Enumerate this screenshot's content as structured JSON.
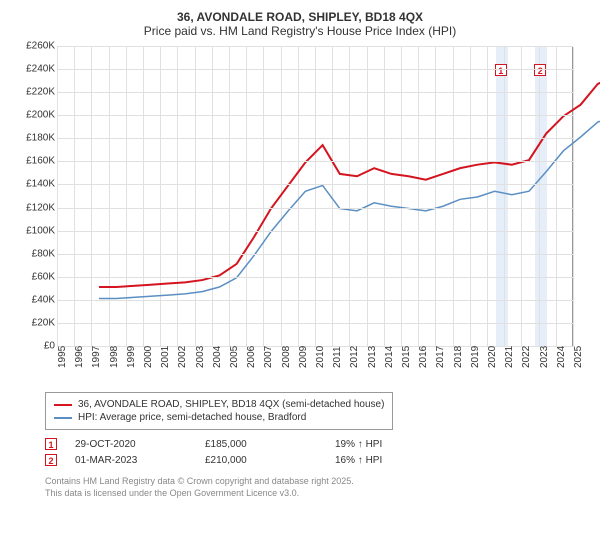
{
  "title": "36, AVONDALE ROAD, SHIPLEY, BD18 4QX",
  "subtitle": "Price paid vs. HM Land Registry's House Price Index (HPI)",
  "chart": {
    "type": "line",
    "background_color": "#ffffff",
    "grid_color": "#e0e0e0",
    "ylim": [
      0,
      260000
    ],
    "ytick_step": 20000,
    "y_ticks": [
      "£0",
      "£20K",
      "£40K",
      "£60K",
      "£80K",
      "£100K",
      "£120K",
      "£140K",
      "£160K",
      "£180K",
      "£200K",
      "£220K",
      "£240K",
      "£260K"
    ],
    "x_years": [
      1995,
      1996,
      1997,
      1998,
      1999,
      2000,
      2001,
      2002,
      2003,
      2004,
      2005,
      2006,
      2007,
      2008,
      2009,
      2010,
      2011,
      2012,
      2013,
      2014,
      2015,
      2016,
      2017,
      2018,
      2019,
      2020,
      2021,
      2022,
      2023,
      2024,
      2025
    ],
    "series": [
      {
        "name": "36, AVONDALE ROAD, SHIPLEY, BD18 4QX (semi-detached house)",
        "color": "#d4141e",
        "line_width": 2,
        "values": [
          52000,
          52000,
          53000,
          54000,
          55000,
          56000,
          58000,
          62000,
          72000,
          95000,
          120000,
          140000,
          160000,
          175000,
          150000,
          148000,
          155000,
          150000,
          148000,
          145000,
          150000,
          155000,
          158000,
          160000,
          158000,
          162000,
          185000,
          200000,
          210000,
          228000,
          235000
        ]
      },
      {
        "name": "HPI: Average price, semi-detached house, Bradford",
        "color": "#5b8fc4",
        "line_width": 1.5,
        "values": [
          42000,
          42000,
          43000,
          44000,
          45000,
          46000,
          48000,
          52000,
          60000,
          79000,
          100000,
          118000,
          135000,
          140000,
          120000,
          118000,
          125000,
          122000,
          120000,
          118000,
          122000,
          128000,
          130000,
          135000,
          132000,
          135000,
          152000,
          170000,
          182000,
          195000,
          200000
        ]
      }
    ],
    "highlight_bands": [
      {
        "start_year": 2020.5,
        "end_year": 2021.2,
        "color": "#d6e4f5"
      },
      {
        "start_year": 2022.8,
        "end_year": 2023.5,
        "color": "#d6e4f5"
      }
    ],
    "markers": [
      {
        "label": "1",
        "year": 2020.8,
        "y": 240000,
        "color": "#d4141e"
      },
      {
        "label": "2",
        "year": 2023.1,
        "y": 240000,
        "color": "#d4141e"
      }
    ]
  },
  "legend": {
    "items": [
      {
        "color": "#d4141e",
        "label": "36, AVONDALE ROAD, SHIPLEY, BD18 4QX (semi-detached house)"
      },
      {
        "color": "#5b8fc4",
        "label": "HPI: Average price, semi-detached house, Bradford"
      }
    ]
  },
  "transactions": [
    {
      "marker": "1",
      "marker_color": "#d4141e",
      "date": "29-OCT-2020",
      "price": "£185,000",
      "delta": "19% ↑ HPI"
    },
    {
      "marker": "2",
      "marker_color": "#d4141e",
      "date": "01-MAR-2023",
      "price": "£210,000",
      "delta": "16% ↑ HPI"
    }
  ],
  "footer_line1": "Contains HM Land Registry data © Crown copyright and database right 2025.",
  "footer_line2": "This data is licensed under the Open Government Licence v3.0."
}
